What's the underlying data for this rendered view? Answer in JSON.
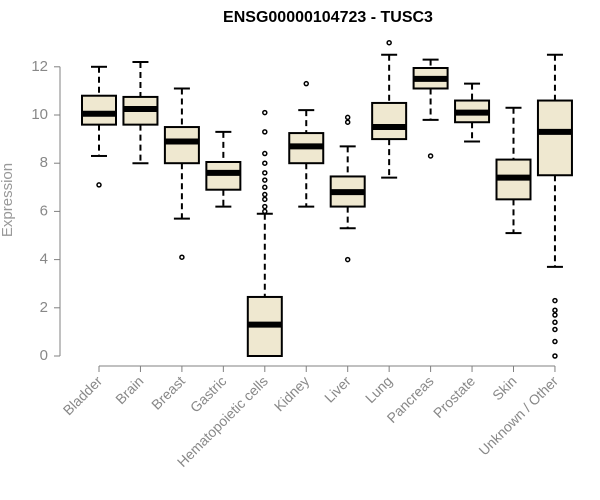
{
  "chart_data": {
    "type": "box",
    "title": "ENSG00000104723 - TUSC3",
    "ylabel": "Expression",
    "xlabel": "",
    "ylim": [
      0,
      12.5
    ],
    "yticks": [
      0,
      2,
      4,
      6,
      8,
      10,
      12
    ],
    "grid": false,
    "legend": "none",
    "box_fill": "#EFE8D0",
    "outline_color": "#000000",
    "axis_color": "#808080",
    "categories": [
      "Bladder",
      "Brain",
      "Breast",
      "Gastric",
      "Hematopoietic cells",
      "Kidney",
      "Liver",
      "Lung",
      "Pancreas",
      "Prostate",
      "Skin",
      "Unknown / Other"
    ],
    "boxes": [
      {
        "whisker_low": 8.3,
        "q1": 9.6,
        "median": 10.05,
        "q3": 10.8,
        "whisker_high": 12.0,
        "outliers": [
          7.1
        ]
      },
      {
        "whisker_low": 8.0,
        "q1": 9.6,
        "median": 10.25,
        "q3": 10.75,
        "whisker_high": 12.2,
        "outliers": []
      },
      {
        "whisker_low": 5.7,
        "q1": 8.0,
        "median": 8.9,
        "q3": 9.5,
        "whisker_high": 11.1,
        "outliers": [
          4.1
        ]
      },
      {
        "whisker_low": 6.2,
        "q1": 6.9,
        "median": 7.6,
        "q3": 8.05,
        "whisker_high": 9.3,
        "outliers": []
      },
      {
        "whisker_low": 0.0,
        "q1": 0.0,
        "median": 1.3,
        "q3": 2.45,
        "whisker_high": 5.9,
        "outliers": [
          6.0,
          6.2,
          6.5,
          6.7,
          7.0,
          7.3,
          7.6,
          8.0,
          8.4,
          9.3,
          10.1
        ]
      },
      {
        "whisker_low": 6.2,
        "q1": 8.0,
        "median": 8.7,
        "q3": 9.25,
        "whisker_high": 10.2,
        "outliers": [
          11.3
        ]
      },
      {
        "whisker_low": 5.3,
        "q1": 6.2,
        "median": 6.8,
        "q3": 7.45,
        "whisker_high": 8.7,
        "outliers": [
          4.0,
          9.7,
          9.9
        ]
      },
      {
        "whisker_low": 7.4,
        "q1": 9.0,
        "median": 9.5,
        "q3": 10.5,
        "whisker_high": 12.5,
        "outliers": [
          13.0
        ]
      },
      {
        "whisker_low": 9.8,
        "q1": 11.1,
        "median": 11.5,
        "q3": 11.95,
        "whisker_high": 12.3,
        "outliers": [
          8.3
        ]
      },
      {
        "whisker_low": 8.9,
        "q1": 9.7,
        "median": 10.1,
        "q3": 10.6,
        "whisker_high": 11.3,
        "outliers": []
      },
      {
        "whisker_low": 5.1,
        "q1": 6.5,
        "median": 7.4,
        "q3": 8.15,
        "whisker_high": 10.3,
        "outliers": []
      },
      {
        "whisker_low": 3.7,
        "q1": 7.5,
        "median": 9.3,
        "q3": 10.6,
        "whisker_high": 12.5,
        "outliers": [
          0.0,
          0.6,
          1.1,
          1.4,
          1.7,
          1.9,
          2.3
        ]
      }
    ]
  }
}
